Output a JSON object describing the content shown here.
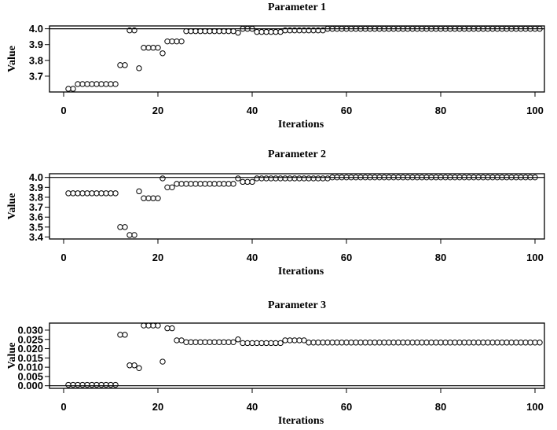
{
  "chart_data": [
    {
      "type": "scatter",
      "title": "Parameter 1",
      "xlabel": "Iterations",
      "ylabel": "Value",
      "xlim": [
        0,
        100
      ],
      "ylim": [
        3.6,
        4.018
      ],
      "xticks": [
        "0",
        "20",
        "40",
        "60",
        "80",
        "100"
      ],
      "yticks": [
        "3.7",
        "3.8",
        "3.9",
        "4.0"
      ],
      "reference_line": 4.0,
      "grid": false,
      "marker": "open-circle",
      "x": "1..100",
      "y": [
        3.62,
        3.62,
        3.65,
        3.65,
        3.65,
        3.65,
        3.65,
        3.65,
        3.65,
        3.65,
        3.65,
        3.77,
        3.77,
        3.99,
        3.99,
        3.75,
        3.88,
        3.88,
        3.88,
        3.88,
        3.845,
        3.92,
        3.92,
        3.92,
        3.92,
        3.985,
        3.985,
        3.985,
        3.985,
        3.985,
        3.985,
        3.985,
        3.985,
        3.985,
        3.985,
        3.985,
        3.975,
        4.0,
        4.0,
        4.0,
        3.98,
        3.98,
        3.98,
        3.98,
        3.98,
        3.98,
        3.99,
        3.99,
        3.99,
        3.99,
        3.99,
        3.99,
        3.99,
        3.99,
        3.99,
        4.0,
        4.0,
        4.0,
        4.0,
        4.0,
        4.0,
        4.0,
        4.0,
        4.0,
        4.0,
        4.0,
        4.0,
        4.0,
        4.0,
        4.0,
        4.0,
        4.0,
        4.0,
        4.0,
        4.0,
        4.0,
        4.0,
        4.0,
        4.0,
        4.0,
        4.0,
        4.0,
        4.0,
        4.0,
        4.0,
        4.0,
        4.0,
        4.0,
        4.0,
        4.0,
        4.0,
        4.0,
        4.0,
        4.0,
        4.0,
        4.0,
        4.0,
        4.0,
        4.0,
        4.0,
        4.0
      ]
    },
    {
      "type": "scatter",
      "title": "Parameter 2",
      "xlabel": "Iterations",
      "ylabel": "Value",
      "xlim": [
        0,
        100
      ],
      "ylim": [
        3.38,
        4.037
      ],
      "xticks": [
        "0",
        "20",
        "40",
        "60",
        "80",
        "100"
      ],
      "yticks": [
        "3.4",
        "3.5",
        "3.6",
        "3.7",
        "3.8",
        "3.9",
        "4.0"
      ],
      "reference_line": 4.0,
      "grid": false,
      "marker": "open-circle",
      "x": "1..100",
      "y": [
        3.84,
        3.84,
        3.84,
        3.84,
        3.84,
        3.84,
        3.84,
        3.84,
        3.84,
        3.84,
        3.84,
        3.5,
        3.5,
        3.42,
        3.42,
        3.86,
        3.79,
        3.79,
        3.79,
        3.79,
        3.99,
        3.9,
        3.9,
        3.935,
        3.935,
        3.935,
        3.935,
        3.935,
        3.935,
        3.935,
        3.935,
        3.935,
        3.935,
        3.935,
        3.935,
        3.935,
        3.99,
        3.955,
        3.955,
        3.955,
        3.99,
        3.99,
        3.99,
        3.99,
        3.99,
        3.99,
        3.99,
        3.99,
        3.99,
        3.99,
        3.99,
        3.99,
        3.99,
        3.99,
        3.99,
        3.99,
        4.0,
        4.0,
        4.0,
        4.0,
        4.0,
        4.0,
        4.0,
        4.0,
        4.0,
        4.0,
        4.0,
        4.0,
        4.0,
        4.0,
        4.0,
        4.0,
        4.0,
        4.0,
        4.0,
        4.0,
        4.0,
        4.0,
        4.0,
        4.0,
        4.0,
        4.0,
        4.0,
        4.0,
        4.0,
        4.0,
        4.0,
        4.0,
        4.0,
        4.0,
        4.0,
        4.0,
        4.0,
        4.0,
        4.0,
        4.0,
        4.0,
        4.0,
        4.0,
        4.0
      ]
    },
    {
      "type": "scatter",
      "title": "Parameter 3",
      "xlabel": "Iterations",
      "ylabel": "Value",
      "xlim": [
        0,
        100
      ],
      "ylim": [
        -0.0014,
        0.0338
      ],
      "xticks": [
        "0",
        "20",
        "40",
        "60",
        "80",
        "100"
      ],
      "yticks": [
        "0.000",
        "0.005",
        "0.010",
        "0.015",
        "0.020",
        "0.025",
        "0.030"
      ],
      "reference_line": 0.0,
      "grid": false,
      "marker": "open-circle",
      "x": "1..100",
      "y": [
        0.0005,
        0.0005,
        0.0005,
        0.0005,
        0.0005,
        0.0005,
        0.0005,
        0.0005,
        0.0005,
        0.0005,
        0.0005,
        0.0275,
        0.0275,
        0.011,
        0.011,
        0.0095,
        0.0325,
        0.0325,
        0.0325,
        0.0325,
        0.013,
        0.031,
        0.031,
        0.0245,
        0.0245,
        0.0235,
        0.0235,
        0.0235,
        0.0235,
        0.0235,
        0.0235,
        0.0235,
        0.0235,
        0.0235,
        0.0235,
        0.0235,
        0.025,
        0.023,
        0.023,
        0.023,
        0.023,
        0.023,
        0.023,
        0.023,
        0.023,
        0.023,
        0.0245,
        0.0245,
        0.0245,
        0.0245,
        0.0245,
        0.0233,
        0.0233,
        0.0233,
        0.0233,
        0.0233,
        0.0233,
        0.0233,
        0.0233,
        0.0233,
        0.0233,
        0.0233,
        0.0233,
        0.0233,
        0.0233,
        0.0233,
        0.0233,
        0.0233,
        0.0233,
        0.0233,
        0.0233,
        0.0233,
        0.0233,
        0.0233,
        0.0233,
        0.0233,
        0.0233,
        0.0233,
        0.0233,
        0.0233,
        0.0233,
        0.0233,
        0.0233,
        0.0233,
        0.0233,
        0.0233,
        0.0233,
        0.0233,
        0.0233,
        0.0233,
        0.0233,
        0.0233,
        0.0233,
        0.0233,
        0.0233,
        0.0233,
        0.0233,
        0.0233,
        0.0233,
        0.0233,
        0.0233
      ]
    }
  ]
}
